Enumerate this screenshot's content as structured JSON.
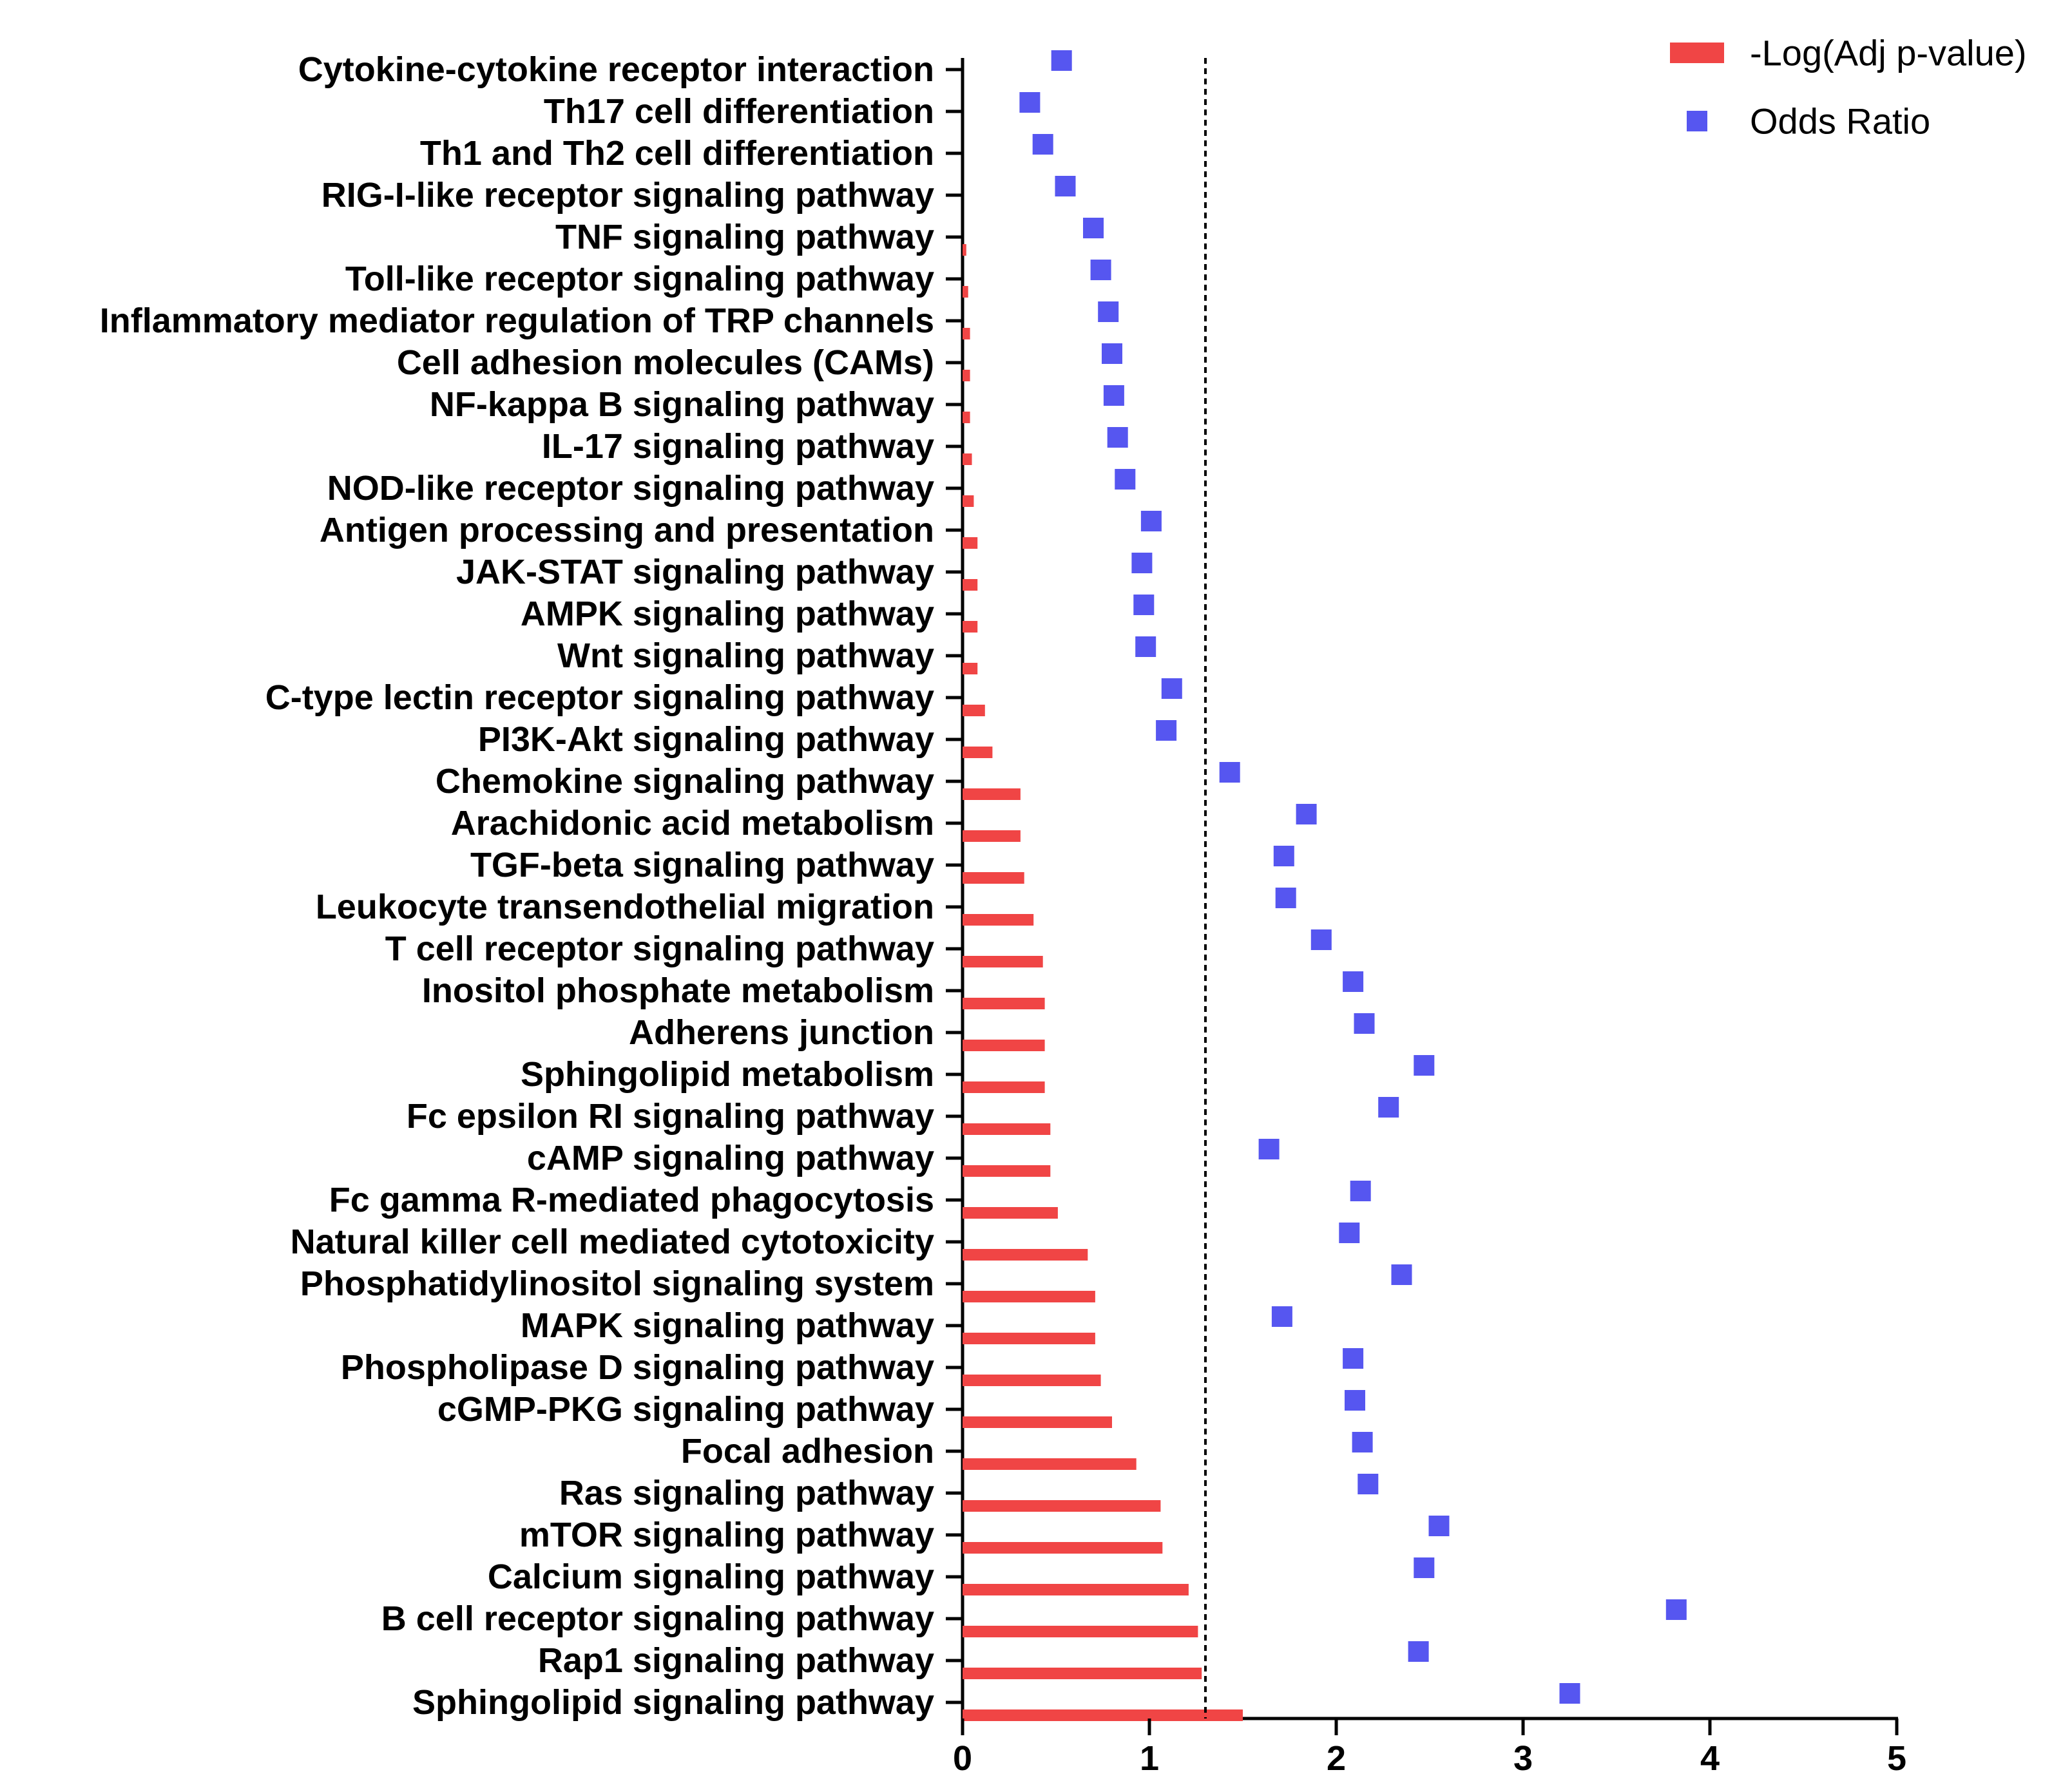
{
  "chart_data": {
    "type": "bar",
    "orientation": "horizontal",
    "title": "",
    "xlabel": "",
    "ylabel": "",
    "xlim": [
      0,
      5
    ],
    "x_ticks": [
      "0",
      "1",
      "2",
      "3",
      "4",
      "5"
    ],
    "reference_line": {
      "x": 1.3,
      "style": "dotted"
    },
    "categories": [
      "Cytokine-cytokine receptor interaction",
      "Th17 cell differentiation",
      "Th1 and Th2 cell differentiation",
      "RIG-I-like receptor signaling pathway",
      "TNF signaling pathway",
      "Toll-like receptor signaling pathway",
      "Inflammatory mediator regulation of TRP channels",
      "Cell adhesion molecules (CAMs)",
      "NF-kappa B signaling pathway",
      "IL-17 signaling pathway",
      "NOD-like receptor signaling pathway",
      "Antigen processing and presentation",
      "JAK-STAT signaling pathway",
      "AMPK signaling pathway",
      "Wnt signaling pathway",
      "C-type lectin receptor signaling pathway",
      "PI3K-Akt signaling pathway",
      "Chemokine signaling pathway",
      "Arachidonic acid metabolism",
      "TGF-beta signaling pathway",
      "Leukocyte transendothelial migration",
      "T cell receptor signaling pathway",
      "Inositol phosphate metabolism",
      "Adherens junction",
      "Sphingolipid metabolism",
      "Fc epsilon RI signaling pathway",
      "cAMP signaling pathway",
      "Fc gamma R-mediated phagocytosis",
      "Natural killer cell mediated cytotoxicity",
      "Phosphatidylinositol signaling system",
      "MAPK signaling pathway",
      "Phospholipase D signaling pathway",
      "cGMP-PKG signaling pathway",
      "Focal adhesion",
      "Ras signaling pathway",
      "mTOR signaling pathway",
      "Calcium signaling pathway",
      "B cell receptor signaling pathway",
      "Rap1 signaling pathway",
      "Sphingolipid signaling pathway"
    ],
    "series": [
      {
        "name": "-Log(Adj p-value)",
        "kind": "bar",
        "color": "#f04545",
        "values": [
          0.0,
          0.0,
          0.0,
          0.0,
          0.02,
          0.03,
          0.04,
          0.04,
          0.04,
          0.05,
          0.06,
          0.08,
          0.08,
          0.08,
          0.08,
          0.12,
          0.16,
          0.31,
          0.31,
          0.33,
          0.38,
          0.43,
          0.44,
          0.44,
          0.44,
          0.47,
          0.47,
          0.51,
          0.67,
          0.71,
          0.71,
          0.74,
          0.8,
          0.93,
          1.06,
          1.07,
          1.21,
          1.26,
          1.28,
          1.5
        ]
      },
      {
        "name": "Odds Ratio",
        "kind": "scatter",
        "marker": "square",
        "color": "#5656f0",
        "values": [
          0.53,
          0.36,
          0.43,
          0.55,
          0.7,
          0.74,
          0.78,
          0.8,
          0.81,
          0.83,
          0.87,
          1.01,
          0.96,
          0.97,
          0.98,
          1.12,
          1.09,
          1.43,
          1.84,
          1.72,
          1.73,
          1.92,
          2.09,
          2.15,
          2.47,
          2.28,
          1.64,
          2.13,
          2.07,
          2.35,
          1.71,
          2.09,
          2.1,
          2.14,
          2.17,
          2.55,
          2.47,
          3.82,
          2.44,
          3.25
        ]
      }
    ],
    "legend": {
      "position": "top-right",
      "entries": [
        "-Log(Adj p-value)",
        "Odds Ratio"
      ]
    }
  }
}
